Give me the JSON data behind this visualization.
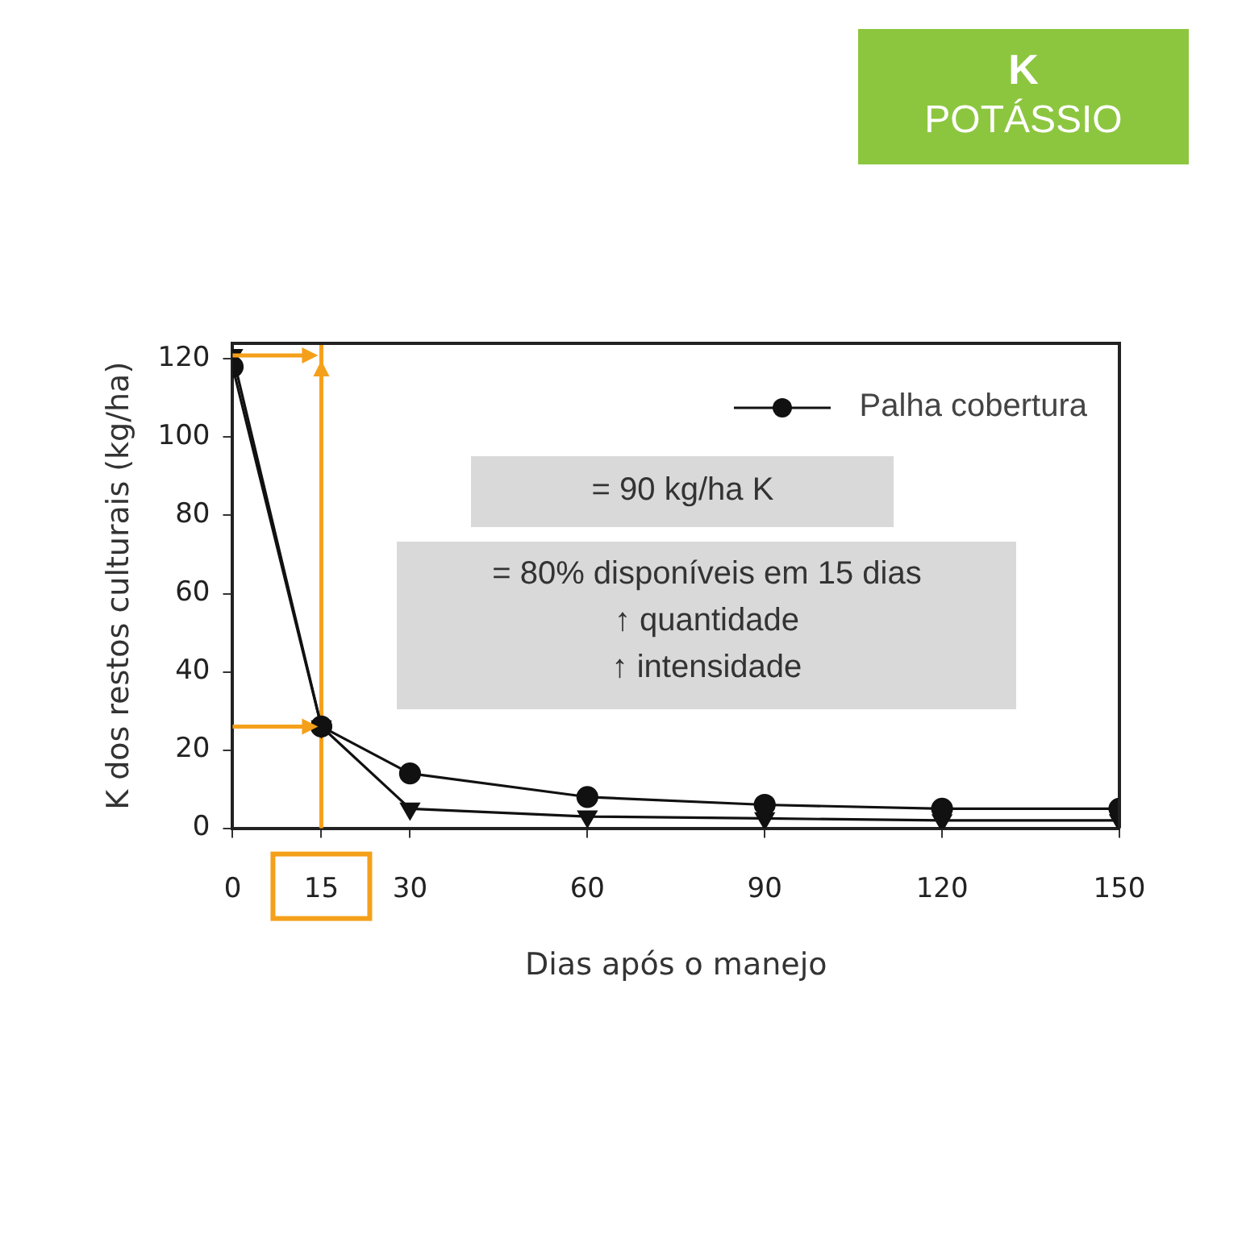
{
  "chart_data": {
    "type": "line",
    "title": "K",
    "subtitle": "POTÁSSIO",
    "xlabel": "Dias após o manejo",
    "ylabel": "K dos restos culturais (kg/ha)",
    "annotations": [
      "= 90 kg/ha K",
      "= 80% disponíveis em 15 dias\n↑ quantidade\n↑ intensidade"
    ],
    "x": [
      0,
      15,
      30,
      60,
      90,
      120,
      150
    ],
    "series": [
      {
        "name": "Palha cobertura",
        "color": "#111111",
        "marker": "circle",
        "values": [
          118,
          26,
          14,
          8,
          6,
          5,
          5
        ]
      },
      {
        "color": "#111111",
        "marker": "triangle",
        "values": [
          121,
          26,
          5,
          3,
          2.5,
          2,
          2
        ]
      }
    ],
    "xlim": [
      0,
      150
    ],
    "xticks": [
      0,
      15,
      30,
      60,
      90,
      120,
      150
    ],
    "ylim": [
      0,
      124
    ],
    "yticks": [
      0,
      20,
      40,
      60,
      80,
      100,
      120
    ],
    "ref_lines": [
      {
        "axis": "x",
        "value": 15,
        "color": "#f5a01a"
      }
    ],
    "grid": false,
    "legend": "top right",
    "line_style": "solid"
  }
}
